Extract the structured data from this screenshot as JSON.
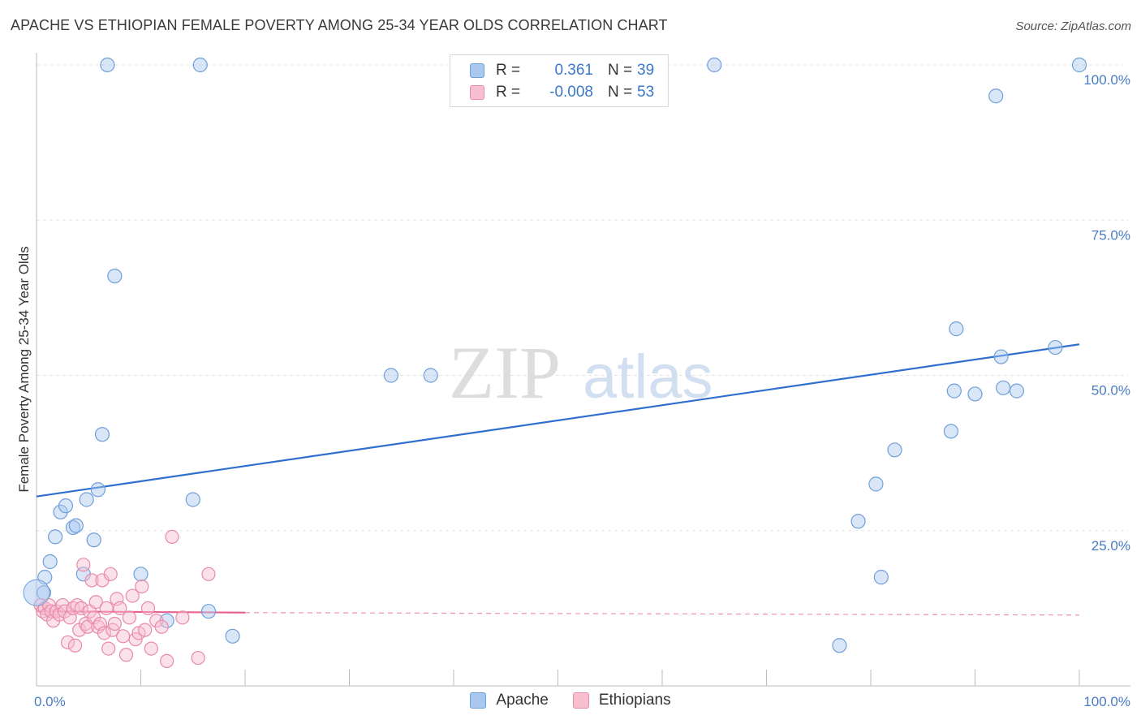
{
  "title": "APACHE VS ETHIOPIAN FEMALE POVERTY AMONG 25-34 YEAR OLDS CORRELATION CHART",
  "source": "Source: ZipAtlas.com",
  "watermark": {
    "zip": "ZIP",
    "atlas": "atlas"
  },
  "legend": {
    "rows": [
      {
        "r_label": "R =",
        "r_value": "0.361",
        "n_label": "N =",
        "n_value": "39",
        "color": "#a9c8ef",
        "border": "#6f9fd8"
      },
      {
        "r_label": "R =",
        "r_value": "-0.008",
        "n_label": "N =",
        "n_value": "53",
        "color": "#f7bfd0",
        "border": "#e88aa8"
      }
    ]
  },
  "bottom_legend": [
    {
      "label": "Apache",
      "color": "#a9c8ef",
      "border": "#6f9fd8"
    },
    {
      "label": "Ethiopians",
      "color": "#f7bfd0",
      "border": "#e88aa8"
    }
  ],
  "chart_data": {
    "type": "scatter",
    "title": "APACHE VS ETHIOPIAN FEMALE POVERTY AMONG 25-34 YEAR OLDS CORRELATION CHART",
    "xlabel": "",
    "ylabel": "Female Poverty Among 25-34 Year Olds",
    "xlim": [
      0,
      100
    ],
    "ylim": [
      0,
      100
    ],
    "x_tick_labels": [
      "0.0%",
      "100.0%"
    ],
    "y_tick_labels": [
      "25.0%",
      "50.0%",
      "75.0%",
      "100.0%"
    ],
    "y_ticks": [
      25,
      50,
      75,
      100
    ],
    "grid": true,
    "legend_position": "top-center",
    "series": [
      {
        "name": "Apache",
        "color": "#a9c8ef",
        "stroke": "#6f9fd8",
        "trend": {
          "x": [
            0,
            100
          ],
          "y": [
            30.5,
            55.0
          ],
          "color": "#2f6fcf"
        },
        "points": [
          [
            0.7,
            15.0
          ],
          [
            0.8,
            17.5
          ],
          [
            1.3,
            20.0
          ],
          [
            1.8,
            24.0
          ],
          [
            2.3,
            28.0
          ],
          [
            2.8,
            29.0
          ],
          [
            3.5,
            25.5
          ],
          [
            3.8,
            25.8
          ],
          [
            4.8,
            30.0
          ],
          [
            5.5,
            23.5
          ],
          [
            4.5,
            18.0
          ],
          [
            5.9,
            31.6
          ],
          [
            6.3,
            40.5
          ],
          [
            6.8,
            100.0
          ],
          [
            7.5,
            66.0
          ],
          [
            10.0,
            18.0
          ],
          [
            12.5,
            10.5
          ],
          [
            15.0,
            30.0
          ],
          [
            15.7,
            100.0
          ],
          [
            16.5,
            12.0
          ],
          [
            18.8,
            8.0
          ],
          [
            34.0,
            50.0
          ],
          [
            37.8,
            50.0
          ],
          [
            65.0,
            100.0
          ],
          [
            77.0,
            6.5
          ],
          [
            78.8,
            26.5
          ],
          [
            80.5,
            32.5
          ],
          [
            81.0,
            17.5
          ],
          [
            82.3,
            38.0
          ],
          [
            87.7,
            41.0
          ],
          [
            88.0,
            47.5
          ],
          [
            88.2,
            57.5
          ],
          [
            90.0,
            47.0
          ],
          [
            92.0,
            95.0
          ],
          [
            92.5,
            53.0
          ],
          [
            92.7,
            48.0
          ],
          [
            94.0,
            47.5
          ],
          [
            97.7,
            54.5
          ],
          [
            100.0,
            100.0
          ]
        ]
      },
      {
        "name": "Ethiopians",
        "color": "#f7bfd0",
        "stroke": "#e88aa8",
        "trend": {
          "x": [
            0,
            20
          ],
          "y": [
            12.0,
            11.8
          ],
          "dashed_to": [
            100,
            11.4
          ],
          "color": "#e8648e"
        },
        "points": [
          [
            0.4,
            13.0
          ],
          [
            0.6,
            12.0
          ],
          [
            0.8,
            12.5
          ],
          [
            1.0,
            11.5
          ],
          [
            1.2,
            13.0
          ],
          [
            1.4,
            12.0
          ],
          [
            1.6,
            10.5
          ],
          [
            1.9,
            12.0
          ],
          [
            2.2,
            11.5
          ],
          [
            2.5,
            13.0
          ],
          [
            2.7,
            12.0
          ],
          [
            3.0,
            7.0
          ],
          [
            3.2,
            11.0
          ],
          [
            3.5,
            12.5
          ],
          [
            3.7,
            6.5
          ],
          [
            3.9,
            13.0
          ],
          [
            4.1,
            9.0
          ],
          [
            4.3,
            12.5
          ],
          [
            4.5,
            19.5
          ],
          [
            4.7,
            10.0
          ],
          [
            4.9,
            9.5
          ],
          [
            5.1,
            12.0
          ],
          [
            5.3,
            17.0
          ],
          [
            5.5,
            11.0
          ],
          [
            5.7,
            13.5
          ],
          [
            5.9,
            9.5
          ],
          [
            6.1,
            10.0
          ],
          [
            6.3,
            17.0
          ],
          [
            6.5,
            8.5
          ],
          [
            6.7,
            12.5
          ],
          [
            6.9,
            6.0
          ],
          [
            7.1,
            18.0
          ],
          [
            7.3,
            9.0
          ],
          [
            7.5,
            10.0
          ],
          [
            7.7,
            14.0
          ],
          [
            8.0,
            12.5
          ],
          [
            8.3,
            8.0
          ],
          [
            8.6,
            5.0
          ],
          [
            8.9,
            11.0
          ],
          [
            9.2,
            14.5
          ],
          [
            9.5,
            7.5
          ],
          [
            9.8,
            8.5
          ],
          [
            10.1,
            16.0
          ],
          [
            10.4,
            9.0
          ],
          [
            10.7,
            12.5
          ],
          [
            11.0,
            6.0
          ],
          [
            11.5,
            10.5
          ],
          [
            12.0,
            9.5
          ],
          [
            12.5,
            4.0
          ],
          [
            13.0,
            24.0
          ],
          [
            14.0,
            11.0
          ],
          [
            15.5,
            4.5
          ],
          [
            16.5,
            18.0
          ]
        ]
      }
    ]
  }
}
